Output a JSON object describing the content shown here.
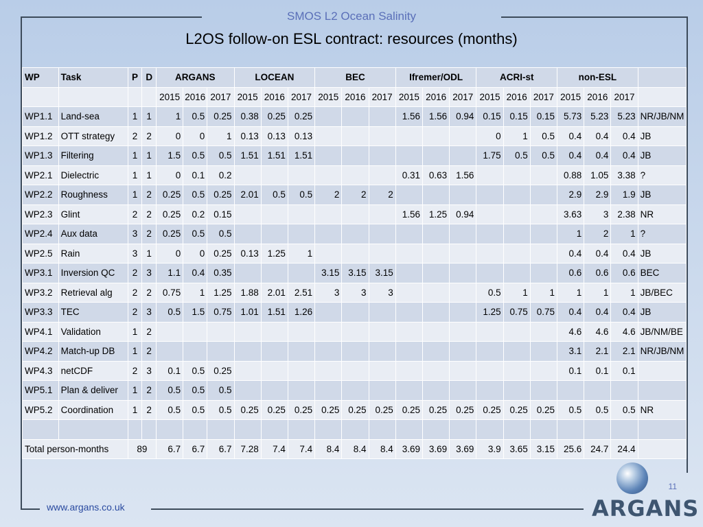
{
  "header": {
    "subtitle": "SMOS L2 Ocean Salinity",
    "title": "L2OS follow-on ESL contract: resources (months)"
  },
  "table": {
    "head": {
      "wp": "WP",
      "task": "Task",
      "p": "P",
      "d": "D",
      "groups": [
        "ARGANS",
        "LOCEAN",
        "BEC",
        "Ifremer/ODL",
        "ACRI-st",
        "non-ESL"
      ],
      "years": [
        "2015",
        "2016",
        "2017"
      ]
    },
    "rows": [
      {
        "wp": "WP1.1",
        "task": "Land-sea",
        "p": "1",
        "d": "1",
        "v": [
          "1",
          "0.5",
          "0.25",
          "0.38",
          "0.25",
          "0.25",
          "",
          "",
          "",
          "1.56",
          "1.56",
          "0.94",
          "0.15",
          "0.15",
          "0.15",
          "5.73",
          "5.23",
          "5.23"
        ],
        "who": "NR/JB/NM"
      },
      {
        "wp": "WP1.2",
        "task": "OTT strategy",
        "p": "2",
        "d": "2",
        "v": [
          "0",
          "0",
          "1",
          "0.13",
          "0.13",
          "0.13",
          "",
          "",
          "",
          "",
          "",
          "",
          "0",
          "1",
          "0.5",
          "0.4",
          "0.4",
          "0.4"
        ],
        "who": "JB"
      },
      {
        "wp": "WP1.3",
        "task": "Filtering",
        "p": "1",
        "d": "1",
        "v": [
          "1.5",
          "0.5",
          "0.5",
          "1.51",
          "1.51",
          "1.51",
          "",
          "",
          "",
          "",
          "",
          "",
          "1.75",
          "0.5",
          "0.5",
          "0.4",
          "0.4",
          "0.4"
        ],
        "who": "JB"
      },
      {
        "wp": "WP2.1",
        "task": "Dielectric",
        "p": "1",
        "d": "1",
        "v": [
          "0",
          "0.1",
          "0.2",
          "",
          "",
          "",
          "",
          "",
          "",
          "0.31",
          "0.63",
          "1.56",
          "",
          "",
          "",
          "0.88",
          "1.05",
          "3.38"
        ],
        "who": "?"
      },
      {
        "wp": "WP2.2",
        "task": "Roughness",
        "p": "1",
        "d": "2",
        "v": [
          "0.25",
          "0.5",
          "0.25",
          "2.01",
          "0.5",
          "0.5",
          "2",
          "2",
          "2",
          "",
          "",
          "",
          "",
          "",
          "",
          "2.9",
          "2.9",
          "1.9"
        ],
        "who": "JB"
      },
      {
        "wp": "WP2.3",
        "task": "Glint",
        "p": "2",
        "d": "2",
        "v": [
          "0.25",
          "0.2",
          "0.15",
          "",
          "",
          "",
          "",
          "",
          "",
          "1.56",
          "1.25",
          "0.94",
          "",
          "",
          "",
          "3.63",
          "3",
          "2.38"
        ],
        "who": "NR"
      },
      {
        "wp": "WP2.4",
        "task": "Aux data",
        "p": "3",
        "d": "2",
        "v": [
          "0.25",
          "0.5",
          "0.5",
          "",
          "",
          "",
          "",
          "",
          "",
          "",
          "",
          "",
          "",
          "",
          "",
          "1",
          "2",
          "1"
        ],
        "who": "?"
      },
      {
        "wp": "WP2.5",
        "task": "Rain",
        "p": "3",
        "d": "1",
        "v": [
          "0",
          "0",
          "0.25",
          "0.13",
          "1.25",
          "1",
          "",
          "",
          "",
          "",
          "",
          "",
          "",
          "",
          "",
          "0.4",
          "0.4",
          "0.4"
        ],
        "who": "JB"
      },
      {
        "wp": "WP3.1",
        "task": "Inversion QC",
        "p": "2",
        "d": "3",
        "v": [
          "1.1",
          "0.4",
          "0.35",
          "",
          "",
          "",
          "3.15",
          "3.15",
          "3.15",
          "",
          "",
          "",
          "",
          "",
          "",
          "0.6",
          "0.6",
          "0.6"
        ],
        "who": "BEC"
      },
      {
        "wp": "WP3.2",
        "task": "Retrieval alg",
        "p": "2",
        "d": "2",
        "v": [
          "0.75",
          "1",
          "1.25",
          "1.88",
          "2.01",
          "2.51",
          "3",
          "3",
          "3",
          "",
          "",
          "",
          "0.5",
          "1",
          "1",
          "1",
          "1",
          "1"
        ],
        "who": "JB/BEC"
      },
      {
        "wp": "WP3.3",
        "task": "TEC",
        "p": "2",
        "d": "3",
        "v": [
          "0.5",
          "1.5",
          "0.75",
          "1.01",
          "1.51",
          "1.26",
          "",
          "",
          "",
          "",
          "",
          "",
          "1.25",
          "0.75",
          "0.75",
          "0.4",
          "0.4",
          "0.4"
        ],
        "who": "JB"
      },
      {
        "wp": "WP4.1",
        "task": "Validation",
        "p": "1",
        "d": "2",
        "v": [
          "",
          "",
          "",
          "",
          "",
          "",
          "",
          "",
          "",
          "",
          "",
          "",
          "",
          "",
          "",
          "4.6",
          "4.6",
          "4.6"
        ],
        "who": "JB/NM/BE"
      },
      {
        "wp": "WP4.2",
        "task": "Match-up DB",
        "p": "1",
        "d": "2",
        "v": [
          "",
          "",
          "",
          "",
          "",
          "",
          "",
          "",
          "",
          "",
          "",
          "",
          "",
          "",
          "",
          "3.1",
          "2.1",
          "2.1"
        ],
        "who": "NR/JB/NM"
      },
      {
        "wp": "WP4.3",
        "task": "netCDF",
        "p": "2",
        "d": "3",
        "v": [
          "0.1",
          "0.5",
          "0.25",
          "",
          "",
          "",
          "",
          "",
          "",
          "",
          "",
          "",
          "",
          "",
          "",
          "0.1",
          "0.1",
          "0.1"
        ],
        "who": ""
      },
      {
        "wp": "WP5.1",
        "task": "Plan & deliver",
        "p": "1",
        "d": "2",
        "v": [
          "0.5",
          "0.5",
          "0.5",
          "",
          "",
          "",
          "",
          "",
          "",
          "",
          "",
          "",
          "",
          "",
          "",
          "",
          "",
          ""
        ],
        "who": ""
      },
      {
        "wp": "WP5.2",
        "task": "Coordination",
        "p": "1",
        "d": "2",
        "v": [
          "0.5",
          "0.5",
          "0.5",
          "0.25",
          "0.25",
          "0.25",
          "0.25",
          "0.25",
          "0.25",
          "0.25",
          "0.25",
          "0.25",
          "0.25",
          "0.25",
          "0.25",
          "0.5",
          "0.5",
          "0.5"
        ],
        "who": "NR"
      }
    ],
    "total": {
      "label": "Total person-months",
      "pd": "89",
      "v": [
        "6.7",
        "6.7",
        "6.7",
        "7.28",
        "7.4",
        "7.4",
        "8.4",
        "8.4",
        "8.4",
        "3.69",
        "3.69",
        "3.69",
        "3.9",
        "3.65",
        "3.15",
        "25.6",
        "24.7",
        "24.4"
      ]
    }
  },
  "footer": {
    "url": "www.argans.co.uk",
    "page_number": "11",
    "logo_text": "ARGANS"
  },
  "colors": {
    "row_even": "#d0d9e8",
    "row_odd": "#e9edf4",
    "header_text": "#5a6fb8",
    "url_text": "#2a4aa0"
  }
}
